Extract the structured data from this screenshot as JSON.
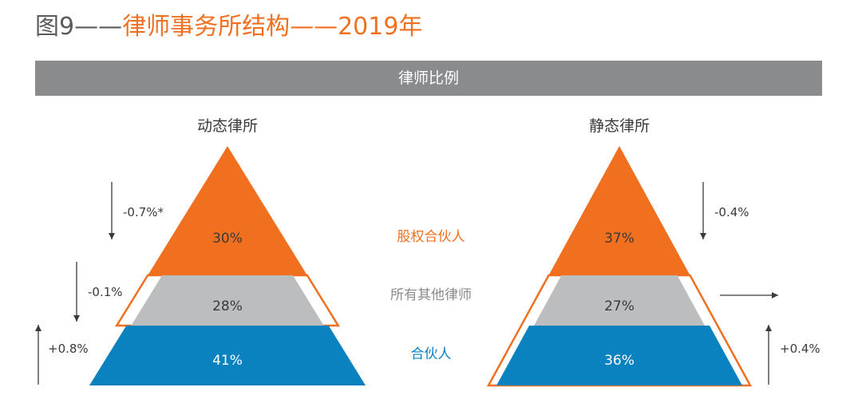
{
  "title": {
    "prefix": "图9——",
    "main": "律师事务所结构——2019年"
  },
  "banner": "律师比例",
  "colors": {
    "orange": "#f07020",
    "gray": "#bcbdbf",
    "blue": "#0a82c0",
    "label_gray": "#8a8b8d",
    "text": "#3a3a3a"
  },
  "chart_data": {
    "type": "pyramid",
    "tiers": [
      "股权合伙人",
      "所有其他律师",
      "合伙人"
    ],
    "pyramids": [
      {
        "name": "动态律所",
        "values": [
          "30%",
          "28%",
          "41%"
        ],
        "changes": [
          {
            "label": "-0.7%*",
            "direction": "down"
          },
          {
            "label": "-0.1%",
            "direction": "down"
          },
          {
            "label": "+0.8%",
            "direction": "up"
          }
        ]
      },
      {
        "name": "静态律所",
        "values": [
          "37%",
          "27%",
          "36%"
        ],
        "changes": [
          {
            "label": "-0.4%",
            "direction": "down"
          },
          {
            "label": "",
            "direction": "right"
          },
          {
            "label": "+0.4%",
            "direction": "up"
          }
        ]
      }
    ]
  }
}
